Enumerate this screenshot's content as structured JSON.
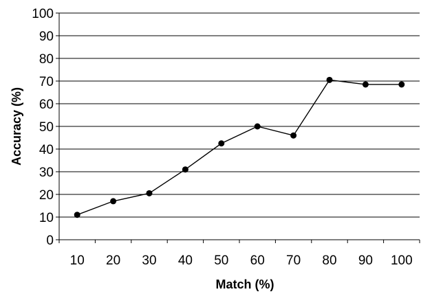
{
  "chart_data": {
    "type": "line",
    "title": "",
    "xlabel": "Match (%)",
    "ylabel": "Accuracy (%)",
    "categories": [
      "10",
      "20",
      "30",
      "40",
      "50",
      "60",
      "70",
      "80",
      "90",
      "100"
    ],
    "series": [
      {
        "values": [
          11,
          17,
          20.5,
          31,
          42.5,
          50,
          46,
          70.5,
          68.5,
          68.5
        ]
      }
    ],
    "ylim": [
      0,
      100
    ],
    "yticks": [
      "0",
      "10",
      "20",
      "30",
      "40",
      "50",
      "60",
      "70",
      "80",
      "90",
      "100"
    ],
    "grid": "horizontal",
    "legend": "none",
    "markers": "filled-circle",
    "colors": {
      "line": "#000000",
      "grid": "#000000",
      "background": "#ffffff"
    }
  }
}
